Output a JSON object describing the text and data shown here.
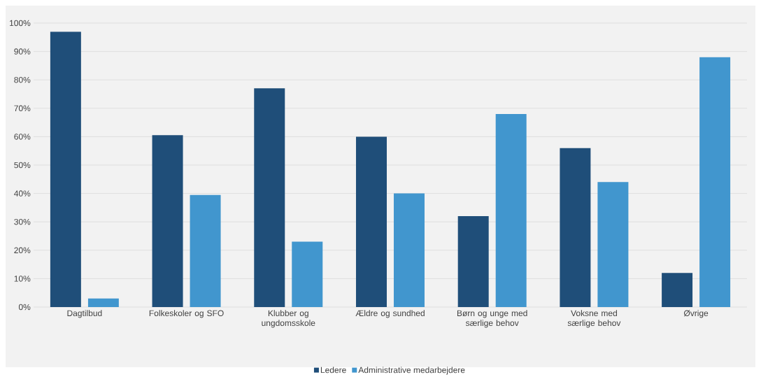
{
  "chart_data": {
    "type": "bar",
    "categories": [
      "Dagtilbud",
      "Folkeskoler og SFO",
      "Klubber og ungdomsskole",
      "Ældre og sundhed",
      "Børn og unge med særlige behov",
      "Voksne med særlige behov",
      "Øvrige"
    ],
    "series": [
      {
        "name": "Ledere",
        "color": "#1f4e79",
        "values": [
          97,
          60.5,
          77,
          60,
          32,
          56,
          12
        ]
      },
      {
        "name": "Administrative medarbejdere",
        "color": "#4196ce",
        "values": [
          3,
          39.5,
          23,
          40,
          68,
          44,
          88
        ]
      }
    ],
    "ylim": [
      0,
      100
    ],
    "yticks": [
      {
        "value": 0,
        "label": "0%"
      },
      {
        "value": 10,
        "label": "10%"
      },
      {
        "value": 20,
        "label": "20%"
      },
      {
        "value": 30,
        "label": "30%"
      },
      {
        "value": 40,
        "label": "40%"
      },
      {
        "value": 50,
        "label": "50%"
      },
      {
        "value": 60,
        "label": "60%"
      },
      {
        "value": 70,
        "label": "70%"
      },
      {
        "value": 80,
        "label": "80%"
      },
      {
        "value": 90,
        "label": "90%"
      },
      {
        "value": 100,
        "label": "100%"
      }
    ],
    "grid": "y",
    "legend": "bottom"
  }
}
